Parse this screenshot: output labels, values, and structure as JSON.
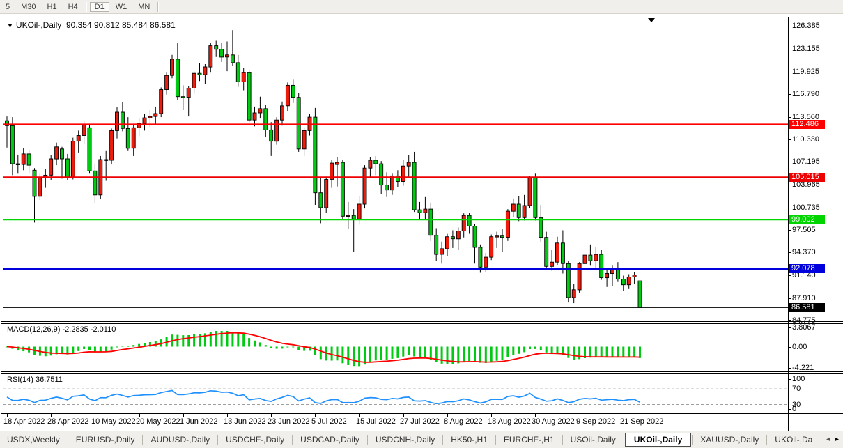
{
  "toolbar": {
    "periods": [
      "5",
      "M30",
      "H1",
      "H4",
      "D1",
      "W1",
      "MN"
    ],
    "active": "D1"
  },
  "chart": {
    "title": {
      "dropdown": "▼",
      "symbol": "UKOil-,Daily",
      "ohlc": "90.354 90.812 85.484 86.581"
    },
    "price_ticks": [
      "126.385",
      "123.155",
      "119.925",
      "116.790",
      "113.560",
      "110.330",
      "107.195",
      "103.965",
      "100.735",
      "97.505",
      "94.370",
      "91.140",
      "87.910",
      "84.775"
    ]
  },
  "chart_data": {
    "type": "candlestick",
    "symbol": "UKOil-",
    "timeframe": "Daily",
    "last_bar": {
      "open": "90.354",
      "high": "90.812",
      "low": "85.484",
      "close": "86.581"
    },
    "colors": {
      "up_candle": "#ee1c0c",
      "down_candle": "#00ca11",
      "wick": "#000000",
      "macd_hist": "#00ca11",
      "macd_signal": "#ff0000",
      "rsi_line": "#1e90ff"
    },
    "levels": [
      {
        "price": 112.486,
        "label": "112.486",
        "color": "#ff0000",
        "width": 2
      },
      {
        "price": 105.015,
        "label": "105.015",
        "color": "#ee0000",
        "width": 2
      },
      {
        "price": 99.002,
        "label": "99.002",
        "color": "#00d500",
        "width": 2
      },
      {
        "price": 92.078,
        "label": "92.078",
        "color": "#0000dd",
        "width": 3
      }
    ],
    "bid_line": {
      "price": 86.581,
      "label": "86.581",
      "color": "#000000",
      "width": 1
    },
    "x_labels": [
      [
        0,
        "18 Apr 2022"
      ],
      [
        8,
        "28 Apr 2022"
      ],
      [
        16,
        "10 May 2022"
      ],
      [
        24,
        "20 May 2022"
      ],
      [
        32,
        "1 Jun 2022"
      ],
      [
        40,
        "13 Jun 2022"
      ],
      [
        48,
        "23 Jun 2022"
      ],
      [
        56,
        "5 Jul 2022"
      ],
      [
        64,
        "15 Jul 2022"
      ],
      [
        72,
        "27 Jul 2022"
      ],
      [
        80,
        "8 Aug 2022"
      ],
      [
        88,
        "18 Aug 2022"
      ],
      [
        96,
        "30 Aug 2022"
      ],
      [
        104,
        "9 Sep 2022"
      ],
      [
        112,
        "21 Sep 2022"
      ]
    ],
    "candles": [
      [
        "2022.04.18",
        113.0,
        113.6,
        109.2,
        112.3
      ],
      [
        "2022.04.19",
        112.3,
        113.5,
        105.3,
        106.9
      ],
      [
        "2022.04.20",
        106.9,
        108.2,
        105.5,
        106.8
      ],
      [
        "2022.04.21",
        106.8,
        109.1,
        106.0,
        108.3
      ],
      [
        "2022.04.22",
        108.3,
        108.8,
        105.6,
        106.7
      ],
      [
        "2022.04.25",
        106.0,
        106.3,
        98.6,
        102.3
      ],
      [
        "2022.04.26",
        102.3,
        105.5,
        101.8,
        105.0
      ],
      [
        "2022.04.27",
        105.0,
        106.2,
        103.5,
        105.3
      ],
      [
        "2022.04.28",
        105.3,
        108.1,
        104.6,
        107.6
      ],
      [
        "2022.04.29",
        107.6,
        109.9,
        106.7,
        109.3
      ],
      [
        "2022.05.02",
        109.0,
        109.3,
        104.8,
        107.6
      ],
      [
        "2022.05.03",
        107.6,
        108.3,
        104.6,
        105.0
      ],
      [
        "2022.05.04",
        105.0,
        110.6,
        104.7,
        110.1
      ],
      [
        "2022.05.05",
        110.1,
        111.6,
        108.5,
        110.9
      ],
      [
        "2022.05.06",
        110.9,
        113.0,
        109.7,
        112.4
      ],
      [
        "2022.05.09",
        112.0,
        112.4,
        105.5,
        105.9
      ],
      [
        "2022.05.10",
        105.9,
        106.9,
        101.3,
        102.5
      ],
      [
        "2022.05.11",
        102.5,
        108.0,
        101.9,
        107.5
      ],
      [
        "2022.05.12",
        107.5,
        108.7,
        104.5,
        107.4
      ],
      [
        "2022.05.13",
        107.4,
        111.9,
        106.8,
        111.6
      ],
      [
        "2022.05.16",
        111.6,
        114.9,
        110.5,
        114.2
      ],
      [
        "2022.05.17",
        114.2,
        115.6,
        111.5,
        111.9
      ],
      [
        "2022.05.18",
        111.9,
        113.5,
        108.7,
        109.1
      ],
      [
        "2022.05.19",
        109.1,
        112.4,
        108.0,
        112.0
      ],
      [
        "2022.05.20",
        112.0,
        113.3,
        110.8,
        112.6
      ],
      [
        "2022.05.23",
        112.6,
        114.0,
        111.6,
        113.4
      ],
      [
        "2022.05.24",
        113.4,
        114.5,
        112.1,
        113.6
      ],
      [
        "2022.05.25",
        113.6,
        115.0,
        112.5,
        114.0
      ],
      [
        "2022.05.26",
        114.0,
        117.7,
        113.5,
        117.4
      ],
      [
        "2022.05.27",
        117.4,
        119.8,
        116.7,
        119.4
      ],
      [
        "2022.05.30",
        119.4,
        122.3,
        119.0,
        121.7
      ],
      [
        "2022.05.31",
        121.7,
        124.0,
        115.9,
        116.4
      ],
      [
        "2022.06.01",
        116.4,
        118.0,
        114.5,
        116.3
      ],
      [
        "2022.06.02",
        116.3,
        117.9,
        113.6,
        117.6
      ],
      [
        "2022.06.03",
        117.6,
        120.0,
        116.8,
        119.7
      ],
      [
        "2022.06.06",
        119.7,
        121.1,
        118.6,
        119.5
      ],
      [
        "2022.06.07",
        119.5,
        121.0,
        118.2,
        120.6
      ],
      [
        "2022.06.08",
        120.6,
        124.0,
        119.8,
        123.6
      ],
      [
        "2022.06.09",
        123.6,
        124.3,
        122.0,
        123.1
      ],
      [
        "2022.06.10",
        123.1,
        124.0,
        121.3,
        122.0
      ],
      [
        "2022.06.13",
        122.0,
        124.2,
        120.0,
        122.3
      ],
      [
        "2022.06.14",
        122.3,
        125.8,
        120.7,
        121.2
      ],
      [
        "2022.06.15",
        121.2,
        122.3,
        117.8,
        118.5
      ],
      [
        "2022.06.16",
        118.5,
        120.5,
        117.3,
        119.8
      ],
      [
        "2022.06.17",
        119.8,
        120.1,
        112.6,
        113.1
      ],
      [
        "2022.06.20",
        113.1,
        115.0,
        112.2,
        114.1
      ],
      [
        "2022.06.21",
        114.1,
        116.4,
        113.3,
        114.7
      ],
      [
        "2022.06.22",
        114.7,
        115.2,
        110.7,
        111.7
      ],
      [
        "2022.06.23",
        111.7,
        112.8,
        108.0,
        110.1
      ],
      [
        "2022.06.24",
        110.1,
        113.5,
        109.6,
        113.1
      ],
      [
        "2022.06.27",
        113.1,
        115.7,
        112.3,
        115.1
      ],
      [
        "2022.06.28",
        115.1,
        118.4,
        114.4,
        118.0
      ],
      [
        "2022.06.29",
        118.0,
        118.8,
        115.5,
        116.3
      ],
      [
        "2022.06.30",
        116.3,
        116.9,
        108.6,
        109.0
      ],
      [
        "2022.07.01",
        109.0,
        112.0,
        108.0,
        111.6
      ],
      [
        "2022.07.04",
        111.6,
        114.0,
        110.9,
        113.5
      ],
      [
        "2022.07.05",
        113.5,
        114.8,
        101.1,
        102.8
      ],
      [
        "2022.07.06",
        102.8,
        105.0,
        98.5,
        100.7
      ],
      [
        "2022.07.07",
        100.7,
        105.1,
        100.0,
        104.7
      ],
      [
        "2022.07.08",
        104.7,
        107.5,
        103.5,
        107.0
      ],
      [
        "2022.07.11",
        106.8,
        107.8,
        103.7,
        107.1
      ],
      [
        "2022.07.12",
        107.1,
        107.5,
        99.0,
        99.5
      ],
      [
        "2022.07.13",
        99.5,
        101.5,
        97.7,
        99.6
      ],
      [
        "2022.07.14",
        99.6,
        100.5,
        94.5,
        99.1
      ],
      [
        "2022.07.15",
        99.1,
        102.3,
        98.3,
        101.2
      ],
      [
        "2022.07.18",
        101.2,
        106.7,
        100.6,
        106.3
      ],
      [
        "2022.07.19",
        106.3,
        107.9,
        104.9,
        107.4
      ],
      [
        "2022.07.20",
        107.4,
        108.0,
        105.3,
        106.9
      ],
      [
        "2022.07.21",
        106.9,
        107.3,
        102.6,
        103.9
      ],
      [
        "2022.07.22",
        103.9,
        105.7,
        102.2,
        103.2
      ],
      [
        "2022.07.25",
        103.2,
        105.5,
        102.5,
        105.2
      ],
      [
        "2022.07.26",
        105.2,
        106.0,
        103.6,
        104.4
      ],
      [
        "2022.07.27",
        104.4,
        107.4,
        103.8,
        106.6
      ],
      [
        "2022.07.28",
        106.6,
        108.1,
        105.1,
        107.1
      ],
      [
        "2022.07.29",
        107.1,
        108.6,
        100.1,
        100.4
      ],
      [
        "2022.08.01",
        100.4,
        101.5,
        99.1,
        100.0
      ],
      [
        "2022.08.02",
        100.0,
        102.2,
        99.0,
        100.5
      ],
      [
        "2022.08.03",
        100.5,
        101.3,
        96.0,
        96.8
      ],
      [
        "2022.08.04",
        96.8,
        97.8,
        93.2,
        94.1
      ],
      [
        "2022.08.05",
        94.1,
        95.9,
        92.8,
        94.9
      ],
      [
        "2022.08.08",
        94.9,
        97.0,
        93.9,
        96.6
      ],
      [
        "2022.08.09",
        96.6,
        97.5,
        95.0,
        96.3
      ],
      [
        "2022.08.10",
        96.3,
        97.9,
        94.7,
        97.4
      ],
      [
        "2022.08.11",
        97.4,
        99.9,
        96.5,
        99.6
      ],
      [
        "2022.08.12",
        99.6,
        100.0,
        97.0,
        98.1
      ],
      [
        "2022.08.15",
        98.1,
        98.4,
        92.8,
        95.1
      ],
      [
        "2022.08.16",
        95.1,
        95.5,
        91.5,
        92.3
      ],
      [
        "2022.08.17",
        92.3,
        94.3,
        91.6,
        93.7
      ],
      [
        "2022.08.18",
        93.7,
        96.9,
        93.3,
        96.6
      ],
      [
        "2022.08.19",
        96.6,
        97.3,
        95.0,
        96.7
      ],
      [
        "2022.08.22",
        96.7,
        97.7,
        94.5,
        96.5
      ],
      [
        "2022.08.23",
        96.5,
        100.5,
        96.0,
        100.2
      ],
      [
        "2022.08.24",
        100.2,
        102.0,
        99.4,
        101.2
      ],
      [
        "2022.08.25",
        101.2,
        102.3,
        98.8,
        99.3
      ],
      [
        "2022.08.26",
        99.3,
        102.5,
        98.9,
        101.0
      ],
      [
        "2022.08.29",
        101.0,
        105.2,
        100.7,
        105.0
      ],
      [
        "2022.08.30",
        105.0,
        105.5,
        98.9,
        99.3
      ],
      [
        "2022.08.31",
        99.3,
        101.1,
        95.8,
        96.5
      ],
      [
        "2022.09.01",
        96.5,
        97.3,
        91.9,
        92.4
      ],
      [
        "2022.09.02",
        92.4,
        94.7,
        91.8,
        93.0
      ],
      [
        "2022.09.05",
        93.0,
        96.6,
        92.6,
        95.7
      ],
      [
        "2022.09.06",
        95.7,
        97.5,
        91.4,
        92.8
      ],
      [
        "2022.09.07",
        92.8,
        93.2,
        87.3,
        88.0
      ],
      [
        "2022.09.08",
        88.0,
        89.9,
        87.2,
        89.1
      ],
      [
        "2022.09.09",
        89.1,
        93.0,
        88.7,
        92.8
      ],
      [
        "2022.09.12",
        92.8,
        94.4,
        91.7,
        94.0
      ],
      [
        "2022.09.13",
        94.0,
        95.5,
        92.5,
        93.2
      ],
      [
        "2022.09.14",
        93.2,
        95.1,
        92.0,
        94.1
      ],
      [
        "2022.09.15",
        94.1,
        94.7,
        90.5,
        90.8
      ],
      [
        "2022.09.16",
        90.8,
        92.0,
        89.5,
        91.4
      ],
      [
        "2022.09.19",
        91.4,
        92.5,
        89.6,
        92.0
      ],
      [
        "2022.09.20",
        92.0,
        93.0,
        90.2,
        90.6
      ],
      [
        "2022.09.21",
        90.6,
        91.1,
        88.9,
        89.8
      ],
      [
        "2022.09.22",
        89.8,
        91.3,
        89.2,
        90.9
      ],
      [
        "2022.09.23",
        90.9,
        91.6,
        89.9,
        91.2
      ],
      [
        "2022.09.26",
        90.354,
        90.812,
        85.484,
        86.581
      ]
    ],
    "indicators": {
      "macd": {
        "label": "MACD(12,26,9)",
        "values": "-2.2835 -2.0110",
        "params": [
          12,
          26,
          9
        ],
        "ticks": [
          "3.8067",
          "0.00",
          "-4.221"
        ]
      },
      "rsi": {
        "label": "RSI(14)",
        "value": "36.7511",
        "params": [
          14
        ],
        "ticks": [
          "100",
          "70",
          "30",
          "0"
        ],
        "levels": [
          70,
          30
        ]
      }
    }
  },
  "tabs": {
    "items": [
      "USDX,Weekly",
      "EURUSD-,Daily",
      "AUDUSD-,Daily",
      "USDCHF-,Daily",
      "USDCAD-,Daily",
      "USDCNH-,Daily",
      "HK50-,H1",
      "EURCHF-,H1",
      "USOil-,Daily",
      "UKOil-,Daily",
      "XAUUSD-,Daily",
      "UKOil-,Da"
    ],
    "active_index": 9,
    "scroll_left": "◂",
    "scroll_right": "▸"
  }
}
